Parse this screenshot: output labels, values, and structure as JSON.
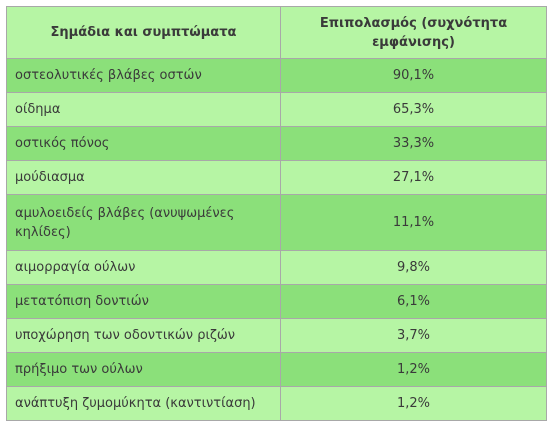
{
  "table": {
    "headers": [
      "Σημάδια και συμπτώματα",
      "Επιπολασμός (συχνότητα εμφάνισης)"
    ],
    "rows": [
      {
        "sign": "οστεολυτικές βλάβες οστών",
        "prevalence": "90,1%"
      },
      {
        "sign": "οίδημα",
        "prevalence": "65,3%"
      },
      {
        "sign": "οστικός πόνος",
        "prevalence": "33,3%"
      },
      {
        "sign": "μούδιασμα",
        "prevalence": "27,1%"
      },
      {
        "sign": "αμυλοειδείς βλάβες (ανυψωμένες κηλίδες)",
        "prevalence": "11,1%"
      },
      {
        "sign": "αιμορραγία ούλων",
        "prevalence": "9,8%"
      },
      {
        "sign": "μετατόπιση δοντιών",
        "prevalence": "6,1%"
      },
      {
        "sign": "υποχώρηση των οδοντικών ριζών",
        "prevalence": "3,7%"
      },
      {
        "sign": "πρήξιμο των ούλων",
        "prevalence": "1,2%"
      },
      {
        "sign": "ανάπτυξη ζυμομύκητα (καντιντίαση)",
        "prevalence": "1,2%"
      }
    ]
  },
  "colors": {
    "header_bg": "#b6f5a4",
    "row_dark": "#8be07a",
    "row_light": "#b6f5a4",
    "border": "#a8a8a8",
    "text": "#3a3a3a"
  }
}
